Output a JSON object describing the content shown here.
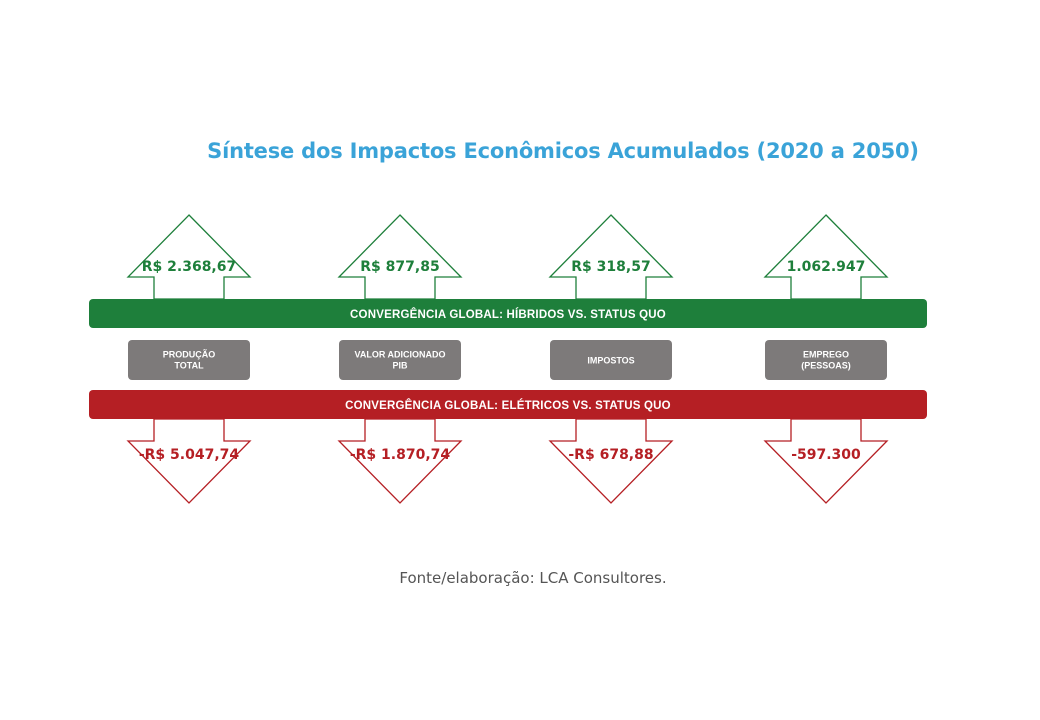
{
  "title": "Síntese dos Impactos Econômicos Acumulados (2020 a 2050)",
  "source": "Fonte/elaboração: LCA Consultores.",
  "colors": {
    "title": "#3aa3d8",
    "green": "#1e7f3b",
    "red": "#b51f24",
    "grey": "#7d7a7a"
  },
  "bars": {
    "hybrid": "CONVERGÊNCIA GLOBAL: HÍBRIDOS VS. STATUS QUO",
    "electric": "CONVERGÊNCIA GLOBAL: ELÉTRICOS VS. STATUS QUO"
  },
  "columns": [
    {
      "label_lines": [
        "PRODUÇÃO",
        "TOTAL"
      ],
      "up": "R$ 2.368,67",
      "down": "-R$ 5.047,74"
    },
    {
      "label_lines": [
        "VALOR ADICIONADO",
        "PIB"
      ],
      "up": "R$ 877,85",
      "down": "-R$ 1.870,74"
    },
    {
      "label_lines": [
        "IMPOSTOS"
      ],
      "up": "R$ 318,57",
      "down": "-R$ 678,88"
    },
    {
      "label_lines": [
        "EMPREGO",
        "(PESSOAS)"
      ],
      "up": "1.062.947",
      "down": "-597.300"
    }
  ]
}
